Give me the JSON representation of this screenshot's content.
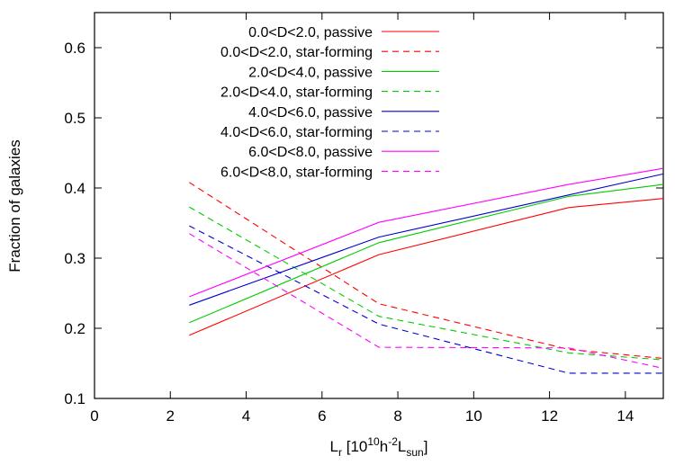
{
  "chart_data": {
    "type": "line",
    "title": "",
    "xlabel": {
      "base": "L",
      "base_sub": "r",
      "pre": " [10",
      "sup1": "10",
      "mid": "h",
      "sup2": "-2",
      "mid2": "L",
      "sub2": "sun",
      "post": "]"
    },
    "ylabel": "Fraction of galaxies",
    "xlim": [
      0,
      15
    ],
    "ylim": [
      0.1,
      0.65
    ],
    "xticks": [
      "0",
      "2",
      "4",
      "6",
      "8",
      "10",
      "12",
      "14"
    ],
    "yticks": [
      "0.1",
      "0.2",
      "0.3",
      "0.4",
      "0.5",
      "0.6"
    ],
    "grid": false,
    "legend_position": "top-center",
    "x": [
      2.5,
      7.5,
      12.5,
      15
    ],
    "series": [
      {
        "name": "0.0<D<2.0, passive",
        "color": "#ff0000",
        "dashed": false,
        "values": [
          0.19,
          0.305,
          0.372,
          0.385
        ]
      },
      {
        "name": "0.0<D<2.0, star-forming",
        "color": "#ff0000",
        "dashed": true,
        "values": [
          0.408,
          0.235,
          0.17,
          0.157
        ]
      },
      {
        "name": "2.0<D<4.0, passive",
        "color": "#00cc00",
        "dashed": false,
        "values": [
          0.208,
          0.322,
          0.388,
          0.405
        ]
      },
      {
        "name": "2.0<D<4.0, star-forming",
        "color": "#00cc00",
        "dashed": true,
        "values": [
          0.373,
          0.217,
          0.165,
          0.155
        ]
      },
      {
        "name": "4.0<D<6.0, passive",
        "color": "#0000cc",
        "dashed": false,
        "values": [
          0.233,
          0.33,
          0.39,
          0.42
        ]
      },
      {
        "name": "4.0<D<6.0, star-forming",
        "color": "#0000cc",
        "dashed": true,
        "values": [
          0.346,
          0.206,
          0.136,
          0.136
        ]
      },
      {
        "name": "6.0<D<8.0, passive",
        "color": "#ff00ff",
        "dashed": false,
        "values": [
          0.245,
          0.351,
          0.405,
          0.428
        ]
      },
      {
        "name": "6.0<D<8.0, star-forming",
        "color": "#ff00ff",
        "dashed": true,
        "values": [
          0.335,
          0.173,
          0.172,
          0.143
        ]
      }
    ]
  }
}
